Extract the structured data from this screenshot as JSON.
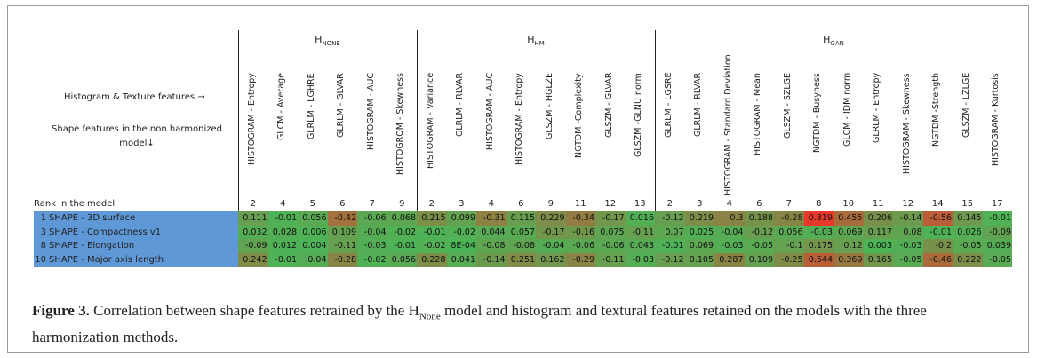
{
  "figure": {
    "row_header_label": "Histogram & Texture features →",
    "col_header_label": "Shape features in the non harmonized model↓",
    "rank_label": "Rank in the model",
    "colors": {
      "zero": "#4cb457",
      "high": "#e8392a",
      "label_bg": "#5f98d6"
    },
    "groups": [
      {
        "symbol": "H",
        "subscript": "NONE",
        "columns": [
          {
            "name": "HISTOGRAM - Entropy",
            "rank": 2
          },
          {
            "name": "GLCM - Average",
            "rank": 4
          },
          {
            "name": "GLRLM - LGHRE",
            "rank": 5
          },
          {
            "name": "GLRLM - GLVAR",
            "rank": 6
          },
          {
            "name": "HISTOGRAM - AUC",
            "rank": 7
          },
          {
            "name": "HISTOGRQM - Skewness",
            "rank": 9
          }
        ]
      },
      {
        "symbol": "H",
        "subscript": "HM",
        "columns": [
          {
            "name": "HISTOGRAM - Variance",
            "rank": 2
          },
          {
            "name": "GLRLM - RLVAR",
            "rank": 3
          },
          {
            "name": "HISTOGRAM - AUC",
            "rank": 4
          },
          {
            "name": "HISTOGRAM - Entropy",
            "rank": 6
          },
          {
            "name": "GLSZM - HGLZE",
            "rank": 9
          },
          {
            "name": "NGTDM -Complexity",
            "rank": 11
          },
          {
            "name": "GLSZM - GLVAR",
            "rank": 12
          },
          {
            "name": "GLSZM -GLNU norm",
            "rank": 13
          }
        ]
      },
      {
        "symbol": "H",
        "subscript": "GAN",
        "columns": [
          {
            "name": "GLRLM - LGSRE",
            "rank": 2
          },
          {
            "name": "GLRLM - RLVAR",
            "rank": 3
          },
          {
            "name": "HISTOGRAM - Standard Deviation",
            "rank": 4
          },
          {
            "name": "HISTOGRAM - Mean",
            "rank": 6
          },
          {
            "name": "GLSZM - SZLGE",
            "rank": 7
          },
          {
            "name": "NGTDM - Busyness",
            "rank": 8
          },
          {
            "name": "GLCM - IDM norm",
            "rank": 10
          },
          {
            "name": "GLRLM - Entropy",
            "rank": 11
          },
          {
            "name": "HISTOGRAM - Skewness",
            "rank": 12
          },
          {
            "name": "NGTDM -Strength",
            "rank": 14
          },
          {
            "name": "GLSZM - LZLGE",
            "rank": 15
          },
          {
            "name": "HISTOGRAM - Kurtosis",
            "rank": 17
          }
        ]
      }
    ],
    "rows": [
      {
        "rank": 1,
        "name": "SHAPE - 3D surface",
        "values": [
          [
            "0.111",
            "-0.01",
            "0.056",
            "-0.42",
            "-0.06",
            "0.068"
          ],
          [
            "0.215",
            "0.099",
            "-0.31",
            "0.115",
            "0.229",
            "-0.34",
            "-0.17",
            "0.016"
          ],
          [
            "-0.12",
            "0.219",
            "0.3",
            "0.188",
            "-0.28",
            "0.819",
            "0.455",
            "0.206",
            "-0.14",
            "-0.56",
            "0.145",
            "-0.01"
          ]
        ]
      },
      {
        "rank": 3,
        "name": "SHAPE - Compactness v1",
        "values": [
          [
            "0.032",
            "0.028",
            "0.006",
            "0.109",
            "-0.04",
            "-0.02"
          ],
          [
            "-0.01",
            "-0.02",
            "0.044",
            "0.057",
            "-0.17",
            "-0.16",
            "0.075",
            "-0.11"
          ],
          [
            "0.07",
            "0.025",
            "-0.04",
            "-0.12",
            "0.056",
            "-0.03",
            "0.069",
            "0.117",
            "0.08",
            "-0.01",
            "0.026",
            "-0.09"
          ]
        ]
      },
      {
        "rank": 8,
        "name": "SHAPE - Elongation",
        "values": [
          [
            "-0.09",
            "0.012",
            "0.004",
            "-0.11",
            "-0.03",
            "-0.01"
          ],
          [
            "-0.02",
            "8E-04",
            "-0.08",
            "-0.08",
            "-0.04",
            "-0.06",
            "-0.06",
            "0.043"
          ],
          [
            "-0.01",
            "0.069",
            "-0.03",
            "-0.05",
            "-0.1",
            "0.175",
            "0.12",
            "0.003",
            "-0.03",
            "-0.2",
            "-0.05",
            "0.039"
          ]
        ]
      },
      {
        "rank": 10,
        "name": "SHAPE - Major axis length",
        "values": [
          [
            "0.242",
            "-0.01",
            "0.04",
            "-0.28",
            "-0.02",
            "0.056"
          ],
          [
            "0.228",
            "0.041",
            "-0.14",
            "0.251",
            "0.162",
            "-0.29",
            "-0.11",
            "-0.03"
          ],
          [
            "-0.12",
            "0.105",
            "0.287",
            "0.109",
            "-0.25",
            "0.544",
            "0.369",
            "0.165",
            "-0.05",
            "-0.46",
            "0.222",
            "-0.05"
          ]
        ]
      }
    ],
    "caption": {
      "label": "Figure 3.",
      "text_before": "Correlation between shape features retrained by the H",
      "subscript": "None",
      "text_after": " model and histogram and textural features retained on the models with the three harmonization methods."
    }
  }
}
